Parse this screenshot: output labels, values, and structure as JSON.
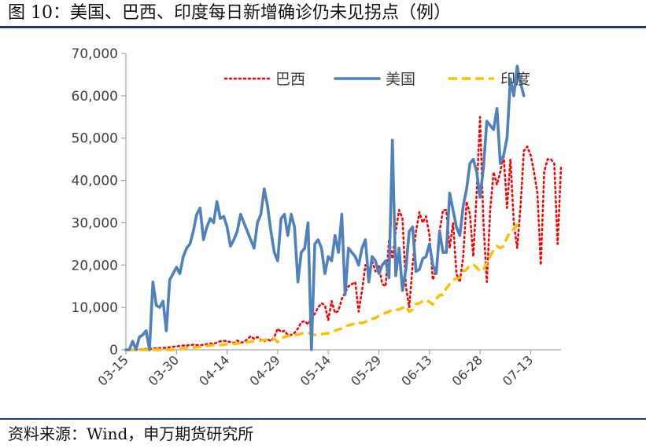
{
  "figure": {
    "title": "图 10：美国、巴西、印度每日新增确诊仍未见拐点（例）",
    "source": "资料来源：Wind，申万期货研究所"
  },
  "colors": {
    "brazil": "#ff0000",
    "usa": "#4f81bd",
    "india": "#ffc000",
    "rule": "#1f3b73",
    "axis": "#a6a6a6",
    "text": "#404040"
  },
  "chart_data": {
    "type": "line",
    "title": "",
    "xlabel": "",
    "ylabel": "",
    "ylim": [
      0,
      70000
    ],
    "yticks": [
      0,
      10000,
      20000,
      30000,
      40000,
      50000,
      60000,
      70000
    ],
    "ytick_labels": [
      "0",
      "10,000",
      "20,000",
      "30,000",
      "40,000",
      "50,000",
      "60,000",
      "70,000"
    ],
    "x_tick_labels": [
      "03-15",
      "03-30",
      "04-14",
      "04-29",
      "05-14",
      "05-29",
      "06-13",
      "06-28",
      "07-13"
    ],
    "x_tick_index": [
      0,
      15,
      30,
      45,
      60,
      75,
      90,
      105,
      120
    ],
    "x_start": "03-15",
    "x_end": "07-15",
    "grid": false,
    "legend_position": "top",
    "series": [
      {
        "name": "巴西",
        "style": "dotted",
        "values": [
          0,
          0,
          0,
          50,
          100,
          150,
          200,
          250,
          300,
          350,
          400,
          450,
          500,
          600,
          700,
          800,
          900,
          1000,
          1000,
          1100,
          1200,
          1100,
          1000,
          1200,
          1300,
          1500,
          1400,
          1700,
          2000,
          2100,
          2000,
          1800,
          1600,
          2200,
          1700,
          1800,
          2500,
          3200,
          2600,
          3000,
          2400,
          2000,
          2500,
          2000,
          3000,
          5000,
          4200,
          4500,
          3500,
          3500,
          4000,
          5000,
          6500,
          6800,
          6000,
          7500,
          8500,
          10000,
          11000,
          10500,
          7000,
          11500,
          8700,
          9200,
          12000,
          13500,
          15000,
          15500,
          16000,
          9000,
          14000,
          20000,
          18000,
          21000,
          18500,
          20000,
          15500,
          15000,
          26000,
          21500,
          28000,
          33000,
          31000,
          15000,
          10000,
          20000,
          28000,
          32500,
          30000,
          31500,
          27000,
          16500,
          19000,
          28000,
          33000,
          33000,
          24000,
          30000,
          18000,
          16000,
          22000,
          35000,
          32000,
          22000,
          37000,
          55000,
          30000,
          16000,
          33000,
          42000,
          39000,
          42000,
          46000,
          33500,
          45000,
          30000,
          24000,
          34000,
          47000,
          48000,
          46000,
          42000,
          37000,
          20000,
          42000,
          45000,
          45000,
          44000,
          25000,
          43000
        ]
      },
      {
        "name": "美国",
        "style": "solid",
        "values": [
          0,
          0,
          2000,
          0,
          3000,
          3500,
          4500,
          0,
          16000,
          10500,
          10000,
          11500,
          4500,
          16500,
          18000,
          19500,
          18000,
          22000,
          24000,
          25000,
          28000,
          32000,
          33500,
          26000,
          29000,
          31000,
          30000,
          35000,
          31000,
          31500,
          29000,
          24500,
          26000,
          28000,
          32000,
          30000,
          28000,
          26000,
          24000,
          30000,
          32000,
          38000,
          34000,
          28000,
          23000,
          21000,
          31000,
          32000,
          27000,
          32000,
          29000,
          16000,
          23000,
          24000,
          30000,
          0,
          25000,
          26000,
          24000,
          18000,
          22000,
          21000,
          27000,
          23000,
          32000,
          13000,
          24000,
          23000,
          22000,
          20000,
          24000,
          26000,
          16000,
          22000,
          21000,
          18000,
          20000,
          21000,
          17000,
          49500,
          17500,
          24000,
          14000,
          19000,
          28000,
          29000,
          18500,
          19000,
          21500,
          22000,
          25000,
          20000,
          18000,
          28000,
          23000,
          23000,
          37000,
          33000,
          29000,
          27000,
          34000,
          38000,
          44000,
          45000,
          42000,
          36000,
          43000,
          54000,
          53000,
          52000,
          57000,
          44000,
          46000,
          50000,
          64000,
          60000,
          67000,
          63000,
          60000
        ]
      },
      {
        "name": "印度",
        "style": "dashed",
        "values": [
          0,
          0,
          0,
          0,
          0,
          0,
          0,
          0,
          0,
          0,
          0,
          0,
          0,
          0,
          0,
          100,
          200,
          300,
          400,
          500,
          500,
          600,
          700,
          800,
          900,
          1000,
          1100,
          1000,
          1100,
          1200,
          1300,
          1200,
          1400,
          1500,
          1600,
          1700,
          1800,
          1900,
          2000,
          2100,
          2200,
          2300,
          2400,
          2500,
          2600,
          1800,
          2800,
          3000,
          3200,
          3500,
          3400,
          3600,
          3800,
          3900,
          4000,
          3700,
          3500,
          3600,
          3700,
          3800,
          3900,
          4000,
          4500,
          4800,
          5000,
          5500,
          5800,
          6000,
          6200,
          6500,
          6300,
          6600,
          7000,
          7300,
          7500,
          8000,
          8400,
          8700,
          9000,
          9500,
          9400,
          9500,
          9900,
          10300,
          9000,
          9500,
          10800,
          11000,
          11500,
          11800,
          11300,
          10700,
          12000,
          12900,
          13000,
          14500,
          15500,
          16500,
          16800,
          17000,
          18500,
          19000,
          20000,
          20100,
          19500,
          18500,
          19000,
          20500,
          22000,
          23500,
          24500,
          24000,
          24500,
          26500,
          28000,
          28500,
          29500,
          30000
        ]
      }
    ]
  }
}
